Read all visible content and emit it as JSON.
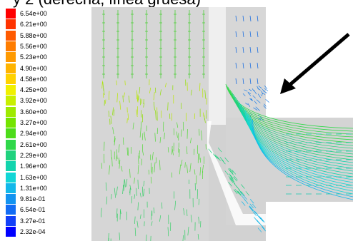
{
  "title": "y 2 (derecha, línea gruesa)",
  "legend": {
    "labels": [
      "6.54e+00",
      "6.21e+00",
      "5.88e+00",
      "5.56e+00",
      "5.23e+00",
      "4.90e+00",
      "4.58e+00",
      "4.25e+00",
      "3.92e+00",
      "3.60e+00",
      "3.27e+00",
      "2.94e+00",
      "2.61e+00",
      "2.29e+00",
      "1.96e+00",
      "1.63e+00",
      "1.31e+00",
      "9.81e-01",
      "6.54e-01",
      "3.27e-01",
      "2.32e-04"
    ],
    "colors": [
      "#ff0000",
      "#ff3300",
      "#ff5a00",
      "#ff7d00",
      "#ff9a00",
      "#ffb400",
      "#ffd200",
      "#f0f000",
      "#c8ef00",
      "#9eea00",
      "#74e400",
      "#4ddc1a",
      "#2fd84a",
      "#1fd27e",
      "#12d4ad",
      "#12d6d6",
      "#12b8ea",
      "#1293f0",
      "#126cf4",
      "#1240f8",
      "#0000ff"
    ]
  },
  "annotation": {
    "kind": "arrow",
    "color": "#000000"
  }
}
